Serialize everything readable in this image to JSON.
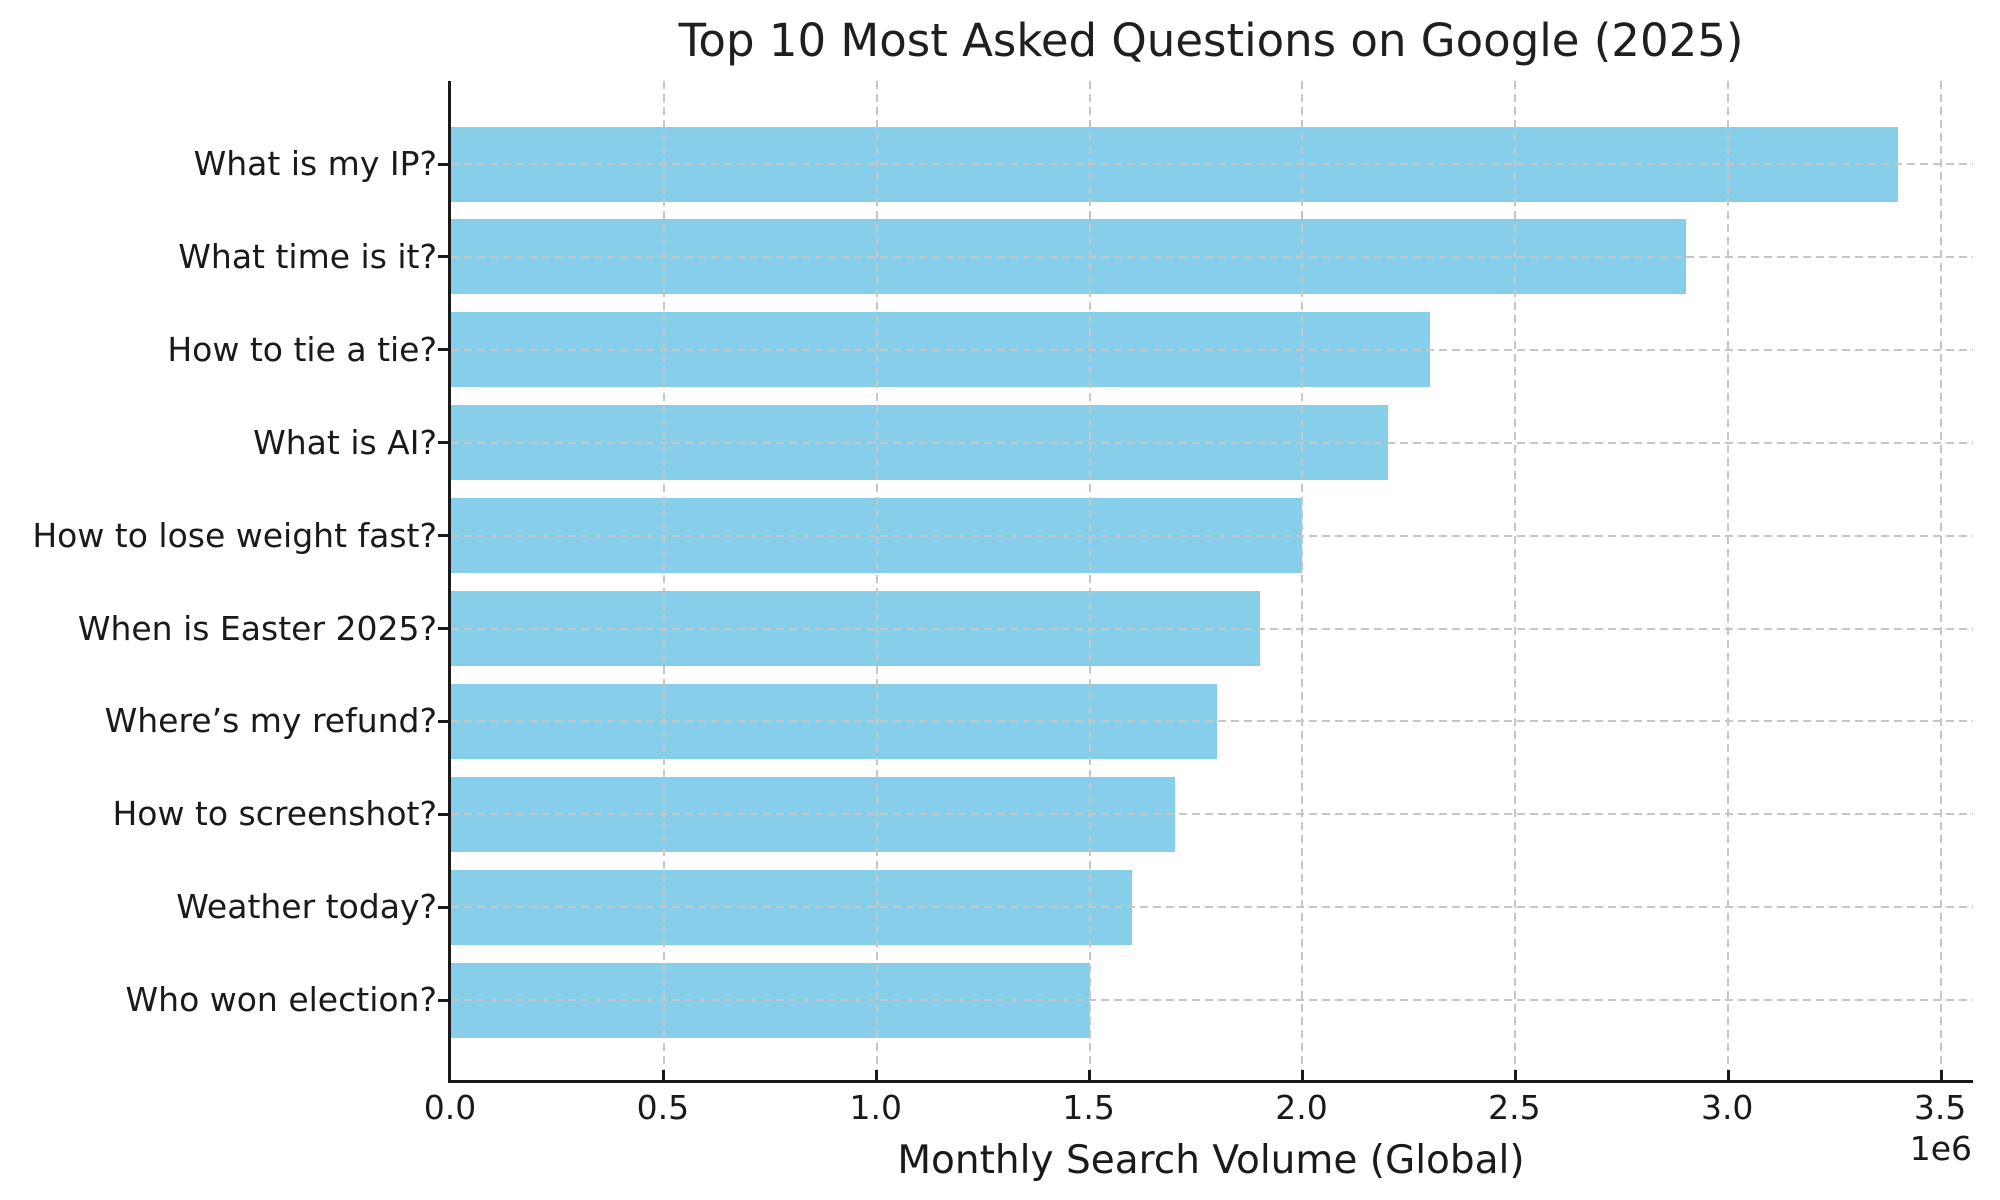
{
  "chart_data": {
    "type": "bar",
    "orientation": "horizontal",
    "title": "Top 10 Most Asked Questions on Google (2025)",
    "xlabel": "Monthly Search Volume (Global)",
    "ylabel": "",
    "offset_label": "1e6",
    "categories": [
      "What is my IP?",
      "What time is it?",
      "How to tie a tie?",
      "What is AI?",
      "How to lose weight fast?",
      "When is Easter 2025?",
      "Where’s my refund?",
      "How to screenshot?",
      "Weather today?",
      "Who won election?"
    ],
    "values": [
      3400000,
      2900000,
      2300000,
      2200000,
      2000000,
      1900000,
      1800000,
      1700000,
      1600000,
      1500000
    ],
    "xlim": [
      0,
      3575000
    ],
    "x_ticks": [
      0,
      500000,
      1000000,
      1500000,
      2000000,
      2500000,
      3000000,
      3500000
    ],
    "x_tick_labels": [
      "0.0",
      "0.5",
      "1.0",
      "1.5",
      "2.0",
      "2.5",
      "3.0",
      "3.5"
    ],
    "grid": "dashed, both axes, drawn over bars",
    "legend": "none",
    "bar_color": "#87CEEB",
    "background_color": "#ffffff",
    "text_color": "#1a1a1a",
    "grid_color": "#c6c6c6"
  }
}
